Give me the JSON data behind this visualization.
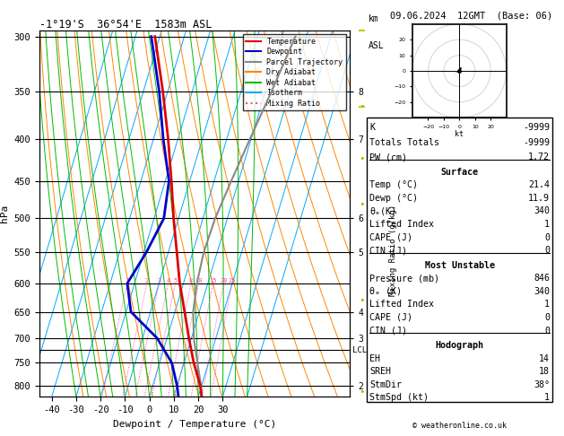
{
  "title_left": "-1°19'S  36°54'E  1583m ASL",
  "title_top_right": "09.06.2024  12GMT  (Base: 06)",
  "xlabel": "Dewpoint / Temperature (°C)",
  "ylabel_left": "hPa",
  "pressure_levels": [
    300,
    350,
    400,
    450,
    500,
    550,
    600,
    650,
    700,
    750,
    800
  ],
  "pressure_min": 295,
  "pressure_max": 825,
  "temp_min": -45,
  "temp_max": 37,
  "skew_factor": 45,
  "isotherms": [
    -60,
    -50,
    -40,
    -30,
    -20,
    -10,
    0,
    10,
    20,
    30,
    40
  ],
  "isotherm_color": "#00aaff",
  "dry_adiabat_color": "#ff8800",
  "wet_adiabat_color": "#00bb00",
  "mixing_ratio_color": "#ff44aa",
  "mixing_ratio_values": [
    1,
    2,
    3,
    4,
    5,
    8,
    10,
    15,
    20,
    25
  ],
  "temp_profile_pressure": [
    825,
    800,
    750,
    700,
    650,
    600,
    550,
    500,
    450,
    400,
    350,
    300
  ],
  "temp_profile_temp": [
    21.4,
    19.5,
    14.0,
    9.0,
    4.0,
    -1.5,
    -6.5,
    -12.0,
    -17.5,
    -24.0,
    -32.0,
    -42.0
  ],
  "dewp_profile_pressure": [
    825,
    800,
    750,
    700,
    650,
    600,
    550,
    500,
    450,
    400,
    350,
    300
  ],
  "dewp_profile_temp": [
    11.9,
    10.0,
    5.0,
    -4.0,
    -18.0,
    -23.0,
    -19.0,
    -16.0,
    -18.5,
    -26.0,
    -33.5,
    -43.5
  ],
  "parcel_profile_pressure": [
    825,
    800,
    750,
    700,
    650,
    600,
    550,
    500,
    450,
    400,
    350,
    300
  ],
  "parcel_profile_temp": [
    21.4,
    19.8,
    15.5,
    11.0,
    7.5,
    5.5,
    4.5,
    5.0,
    7.0,
    9.5,
    12.5,
    15.5
  ],
  "temp_color": "#dd0000",
  "dewp_color": "#0000cc",
  "parcel_color": "#888888",
  "lcl_pressure": 724,
  "background_color": "#ffffff",
  "km_labels_p": [
    350,
    400,
    500,
    550,
    650,
    700,
    800
  ],
  "km_labels_v": [
    "8",
    "7",
    "6",
    "5",
    "4",
    "3",
    "2"
  ],
  "right_panel": {
    "K": "-9999",
    "Totals_Totals": "-9999",
    "PW_cm": "1.72",
    "Surface_Temp": "21.4",
    "Surface_Dewp": "11.9",
    "Surface_theta_e": "340",
    "Lifted_Index": "1",
    "CAPE": "0",
    "CIN": "0",
    "MU_Pressure": "846",
    "MU_theta_e": "340",
    "MU_Lifted_Index": "1",
    "MU_CAPE": "0",
    "MU_CIN": "0",
    "EH": "14",
    "SREH": "18",
    "StmDir": "38°",
    "StmSpd": "1"
  },
  "legend_entries": [
    [
      "Temperature",
      "#dd0000",
      "-"
    ],
    [
      "Dewpoint",
      "#0000cc",
      "-"
    ],
    [
      "Parcel Trajectory",
      "#888888",
      "-"
    ],
    [
      "Dry Adiabat",
      "#ff8800",
      "-"
    ],
    [
      "Wet Adiabat",
      "#00bb00",
      "-"
    ],
    [
      "Isotherm",
      "#00aaff",
      "-"
    ],
    [
      "Mixing Ratio",
      "#ff44aa",
      ":"
    ]
  ]
}
